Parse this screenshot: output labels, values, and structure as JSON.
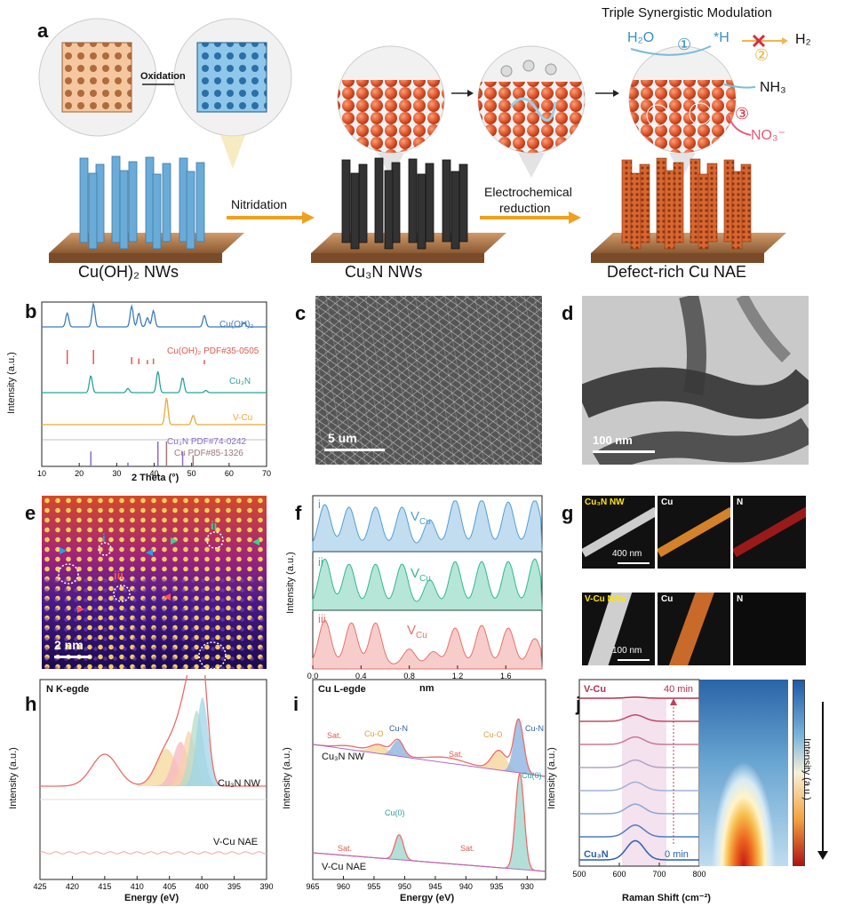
{
  "panel_a": {
    "label": "a",
    "oxidation": "Oxidation",
    "nitridation": "Nitridation",
    "electro_line1": "Electrochemical",
    "electro_line2": "reduction",
    "title": "Triple Synergistic Modulation",
    "h2o": "H₂O",
    "h_ads": "*H",
    "h2": "H₂",
    "nh3": "NH₃",
    "no3": "NO₃⁻",
    "step1": "①",
    "step2": "②",
    "step3": "③",
    "cap1": "Cu(OH)₂ NWs",
    "cap2": "Cu₃N NWs",
    "cap3": "Defect-rich Cu NAE"
  },
  "panel_b": {
    "label": "b",
    "xlabel": "2 Theta (°)",
    "ylabel": "Intensity (a.u.)",
    "x_ticks": [
      "10",
      "20",
      "30",
      "40",
      "50",
      "60",
      "70"
    ],
    "labels": [
      "Cu(OH)₂",
      "Cu(OH)₂ PDF#35-0505",
      "Cu₃N",
      "V-Cu",
      "Cu₃N PDF#74-0242",
      "Cu PDF#85-1326"
    ],
    "colors": [
      "#3b7bbf",
      "#e05a4f",
      "#2aa39a",
      "#e8a93a",
      "#8a6cc6",
      "#a0777a"
    ]
  },
  "panel_c": {
    "label": "c",
    "scale": "5 um"
  },
  "panel_d": {
    "label": "d",
    "scale": "100 nm"
  },
  "panel_e": {
    "label": "e",
    "scale": "2 nm",
    "mark_i": "i",
    "mark_ii": "ii",
    "mark_iii": "iii"
  },
  "panel_f": {
    "label": "f",
    "xlabel": "nm",
    "ylabel": "Intensity (a.u.)",
    "x_ticks": [
      "0.0",
      "0.4",
      "0.8",
      "1.2",
      "1.6"
    ],
    "rows": [
      {
        "id": "i",
        "vac": "V",
        "sub": "Cu",
        "color": "#4f9fd4"
      },
      {
        "id": "ii",
        "vac": "V",
        "sub": "Cu",
        "color": "#2fb890"
      },
      {
        "id": "iii",
        "vac": "V",
        "sub": "Cu",
        "color": "#e8716b"
      }
    ]
  },
  "panel_g": {
    "label": "g",
    "top_label": "Cu₃N NW",
    "top_cu": "Cu",
    "top_n": "N",
    "top_scale": "400 nm",
    "bot_label": "V-Cu NAE",
    "bot_cu": "Cu",
    "bot_n": "N",
    "bot_scale": "100 nm"
  },
  "panel_h": {
    "label": "h",
    "title": "N K-egde",
    "xlabel": "Energy (eV)",
    "ylabel": "Intensity (a.u.)",
    "x_ticks": [
      "425",
      "420",
      "415",
      "410",
      "405",
      "400",
      "395",
      "390"
    ],
    "s1": "Cu₃N NW",
    "s2": "V-Cu NAE"
  },
  "panel_i": {
    "label": "i",
    "title": "Cu L-egde",
    "xlabel": "Energy (eV)",
    "ylabel": "Intensity (a.u.)",
    "x_ticks": [
      "965",
      "960",
      "955",
      "950",
      "945",
      "940",
      "935",
      "930"
    ],
    "s1": "Cu₃N NW",
    "s2": "V-Cu NAE",
    "sat": "Sat.",
    "cuo": "Cu-O",
    "cun": "Cu-N",
    "cu0": "Cu(0)"
  },
  "panel_j": {
    "label": "j",
    "xlabel": "Raman Shift (cm⁻²)",
    "ylabel": "Intensity (a.u.)",
    "x_ticks": [
      "500",
      "600",
      "700",
      "800"
    ],
    "top": "V-Cu",
    "bottom": "Cu₃N",
    "t_end": "40 min",
    "t_start": "0 min",
    "bar_label": "Intensity (a.u.)"
  }
}
